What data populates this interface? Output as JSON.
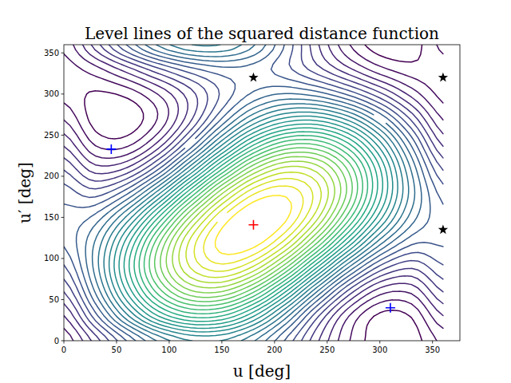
{
  "chart_data": {
    "type": "contour",
    "title": "Level lines of the squared distance function",
    "x_label": "u [deg]",
    "y_label": "u′ [deg]",
    "xlim": [
      0,
      376
    ],
    "ylim": [
      0,
      360
    ],
    "xticks": [
      0,
      50,
      100,
      150,
      200,
      250,
      300,
      350
    ],
    "yticks": [
      0,
      50,
      100,
      150,
      200,
      250,
      300,
      350
    ],
    "x": [
      0,
      30,
      60,
      90,
      120,
      150,
      180,
      210,
      240,
      270,
      300,
      330,
      360
    ],
    "y": [
      0,
      30,
      60,
      90,
      120,
      150,
      180,
      210,
      240,
      270,
      300,
      330,
      360
    ],
    "z": [
      [
        0.61,
        1.01,
        1.46,
        1.85,
        2.07,
        2.07,
        1.84,
        1.44,
        0.98,
        0.59,
        0.37,
        0.38,
        0.61
      ],
      [
        0.82,
        1.4,
        2.04,
        2.58,
        2.86,
        2.82,
        2.46,
        1.89,
        1.24,
        0.71,
        0.42,
        0.46,
        0.82
      ],
      [
        1.08,
        1.72,
        2.47,
        3.14,
        3.55,
        3.58,
        3.23,
        2.6,
        1.84,
        1.17,
        0.76,
        0.73,
        1.08
      ],
      [
        1.31,
        1.88,
        2.65,
        3.41,
        3.96,
        4.16,
        3.94,
        3.38,
        2.61,
        1.85,
        1.3,
        1.1,
        1.31
      ],
      [
        1.47,
        1.84,
        2.51,
        3.29,
        3.98,
        4.38,
        4.4,
        4.03,
        3.36,
        2.58,
        1.89,
        1.49,
        1.47
      ],
      [
        1.49,
        1.62,
        2.11,
        2.83,
        3.6,
        4.2,
        4.48,
        4.36,
        3.87,
        3.14,
        2.38,
        1.77,
        1.49
      ],
      [
        1.39,
        1.26,
        1.54,
        2.15,
        2.93,
        3.67,
        4.17,
        4.29,
        4.02,
        3.41,
        2.63,
        1.89,
        1.39
      ],
      [
        1.18,
        0.87,
        0.96,
        1.42,
        2.14,
        2.91,
        3.54,
        3.85,
        3.76,
        3.29,
        2.58,
        1.8,
        1.18
      ],
      [
        0.92,
        0.55,
        0.53,
        0.86,
        1.45,
        2.15,
        2.77,
        3.14,
        3.16,
        2.83,
        2.24,
        1.54,
        0.92
      ],
      [
        0.69,
        0.39,
        0.36,
        0.59,
        1.04,
        1.58,
        2.06,
        2.35,
        2.39,
        2.15,
        1.7,
        1.17,
        0.69
      ],
      [
        0.53,
        0.43,
        0.49,
        0.71,
        1.02,
        1.35,
        1.6,
        1.71,
        1.64,
        1.42,
        1.11,
        0.78,
        0.53
      ],
      [
        0.51,
        0.65,
        0.89,
        1.17,
        1.4,
        1.53,
        1.52,
        1.37,
        1.13,
        0.86,
        0.62,
        0.5,
        0.51
      ],
      [
        0.61,
        1.01,
        1.46,
        1.85,
        2.07,
        2.07,
        1.84,
        1.44,
        0.98,
        0.59,
        0.37,
        0.38,
        0.61
      ]
    ],
    "levels": [
      0.45,
      0.575,
      0.7,
      0.825,
      0.95,
      1.075,
      1.2,
      1.325,
      1.45,
      1.575,
      1.7,
      1.825,
      1.95,
      2.075,
      2.2,
      2.325,
      2.45,
      2.575,
      2.7,
      2.825,
      2.95,
      3.075,
      3.2,
      3.325,
      3.45,
      3.575,
      3.7,
      3.825,
      3.95,
      4.075,
      4.2,
      4.325
    ],
    "series": [
      {
        "type": "scatter",
        "marker": "plus",
        "color": "#ff0000",
        "x": [
          180
        ],
        "values": [
          141
        ]
      },
      {
        "type": "scatter",
        "marker": "plus",
        "color": "#0000ff",
        "x": [
          45,
          310
        ],
        "values": [
          233,
          40
        ]
      },
      {
        "type": "scatter",
        "marker": "star",
        "color": "#000000",
        "x": [
          180,
          360,
          360
        ],
        "values": [
          320,
          320,
          135
        ]
      }
    ]
  }
}
